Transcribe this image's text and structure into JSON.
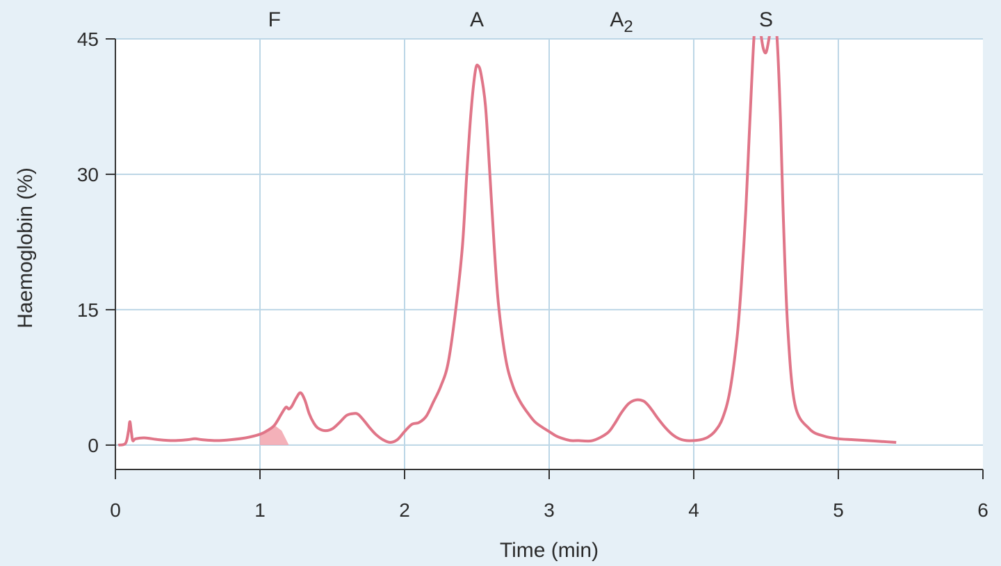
{
  "chart_data": {
    "type": "line",
    "title": "",
    "xlabel": "Time (min)",
    "ylabel": "Haemoglobin (%)",
    "xlim": [
      0,
      6
    ],
    "ylim": [
      -2.7,
      45
    ],
    "x_ticks": [
      "0",
      "1",
      "2",
      "3",
      "4",
      "5",
      "6"
    ],
    "y_ticks": [
      "0",
      "15",
      "30",
      "45"
    ],
    "grid": true,
    "legend": "none",
    "line_color": "#e07588",
    "fill_color": "#f2a3ad",
    "peak_labels": [
      {
        "text": "F",
        "x": 1.1
      },
      {
        "text": "A",
        "x": 2.5
      },
      {
        "text": "A",
        "sub": "2",
        "x": 3.5
      },
      {
        "text": "S",
        "x": 4.5
      }
    ],
    "series": [
      {
        "x": [
          0.02,
          0.07,
          0.09,
          0.1,
          0.11,
          0.12,
          0.14,
          0.2,
          0.3,
          0.4,
          0.5,
          0.55,
          0.6,
          0.7,
          0.8,
          0.9,
          1.0,
          1.05,
          1.1,
          1.15,
          1.18,
          1.2,
          1.22,
          1.25,
          1.28,
          1.31,
          1.34,
          1.37,
          1.4,
          1.45,
          1.5,
          1.55,
          1.6,
          1.65,
          1.68,
          1.72,
          1.76,
          1.8,
          1.85,
          1.9,
          1.95,
          2.0,
          2.05,
          2.1,
          2.15,
          2.2,
          2.25,
          2.3,
          2.35,
          2.4,
          2.43,
          2.46,
          2.49,
          2.51,
          2.53,
          2.56,
          2.59,
          2.62,
          2.65,
          2.7,
          2.75,
          2.8,
          2.85,
          2.9,
          2.95,
          3.0,
          3.05,
          3.1,
          3.15,
          3.2,
          3.3,
          3.4,
          3.45,
          3.5,
          3.55,
          3.6,
          3.65,
          3.68,
          3.71,
          3.75,
          3.8,
          3.85,
          3.9,
          3.95,
          4.0,
          4.05,
          4.1,
          4.15,
          4.2,
          4.25,
          4.3,
          4.33,
          4.36,
          4.38,
          4.4,
          4.42,
          4.44,
          4.46,
          4.48,
          4.5,
          4.52,
          4.54,
          4.56,
          4.58,
          4.6,
          4.62,
          4.65,
          4.7,
          4.8,
          4.9,
          5.0,
          5.1,
          5.2,
          5.3,
          5.4
        ],
        "y": [
          0.0,
          0.2,
          1.5,
          2.6,
          1.5,
          0.5,
          0.7,
          0.8,
          0.6,
          0.5,
          0.6,
          0.7,
          0.6,
          0.5,
          0.6,
          0.8,
          1.2,
          1.6,
          2.2,
          3.5,
          4.2,
          4.0,
          4.3,
          5.2,
          5.8,
          5.0,
          3.5,
          2.5,
          1.9,
          1.6,
          1.8,
          2.5,
          3.3,
          3.5,
          3.4,
          2.7,
          1.9,
          1.2,
          0.6,
          0.3,
          0.6,
          1.5,
          2.3,
          2.5,
          3.2,
          4.8,
          6.5,
          9.0,
          14.5,
          22.0,
          30.0,
          37.0,
          41.5,
          42.0,
          41.0,
          37.5,
          30.0,
          22.0,
          15.5,
          9.5,
          6.5,
          4.8,
          3.6,
          2.6,
          2.0,
          1.5,
          1.0,
          0.7,
          0.5,
          0.5,
          0.5,
          1.3,
          2.3,
          3.6,
          4.6,
          5.0,
          4.9,
          4.5,
          3.9,
          3.0,
          2.0,
          1.2,
          0.7,
          0.5,
          0.5,
          0.6,
          0.9,
          1.6,
          3.0,
          6.0,
          12.0,
          18.0,
          26.0,
          33.0,
          40.0,
          46.0,
          48.0,
          46.0,
          44.0,
          43.5,
          45.0,
          47.0,
          48.0,
          44.0,
          36.0,
          25.0,
          13.0,
          4.5,
          1.8,
          1.0,
          0.7,
          0.6,
          0.5,
          0.4,
          0.3
        ]
      }
    ],
    "shaded_region": {
      "x": [
        1.0,
        1.05,
        1.1,
        1.15,
        1.2
      ],
      "y": [
        1.2,
        1.6,
        2.2,
        1.6,
        0.0
      ]
    }
  }
}
